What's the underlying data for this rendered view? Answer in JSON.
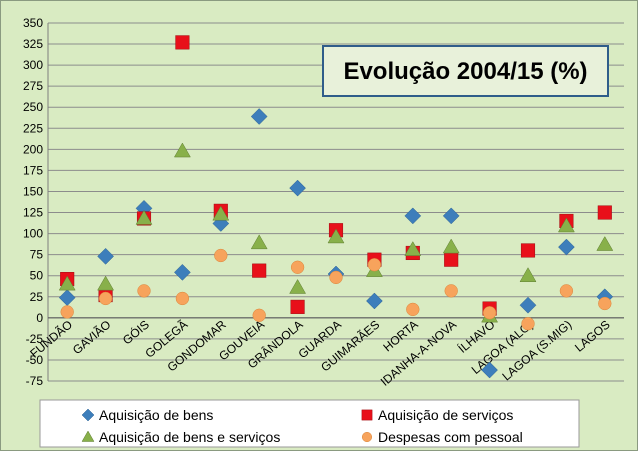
{
  "chart_data": {
    "type": "scatter",
    "title": "Evolução 2004/15 (%)",
    "categories": [
      "FUNDÃO",
      "GAVIÃO",
      "GÓIS",
      "GOLEGÃ",
      "GONDOMAR",
      "GOUVEIA",
      "GRÂNDOLA",
      "GUARDA",
      "GUIMARÃES",
      "HORTA",
      "IDANHA-A-NOVA",
      "ÍLHAVO",
      "LAGOA (ALG)",
      "LAGOA (S.MIG)",
      "LAGOS"
    ],
    "ylim": [
      -75,
      350
    ],
    "yticks": [
      -75,
      -50,
      -25,
      0,
      25,
      50,
      75,
      100,
      125,
      150,
      175,
      200,
      225,
      250,
      275,
      300,
      325,
      350
    ],
    "grid": true,
    "legend_position": "bottom",
    "background": "#d9ebc2",
    "title_box_color": "#e8f1da",
    "series": [
      {
        "name": "Aquisição de bens",
        "marker": "diamond",
        "color": "#3d7ebb",
        "values": [
          24,
          73,
          130,
          54,
          112,
          239,
          154,
          52,
          20,
          121,
          121,
          -62,
          15,
          84,
          25
        ]
      },
      {
        "name": "Aquisição de serviços",
        "marker": "square",
        "color": "#e8101a",
        "values": [
          46,
          27,
          118,
          327,
          127,
          56,
          13,
          104,
          69,
          77,
          69,
          11,
          80,
          115,
          125
        ]
      },
      {
        "name": "Aquisição de bens e serviços",
        "marker": "triangle",
        "color": "#88b04a",
        "values": [
          40,
          40,
          118,
          198,
          123,
          89,
          36,
          96,
          56,
          81,
          84,
          2,
          50,
          109,
          87
        ]
      },
      {
        "name": "Despesas com pessoal",
        "marker": "circle",
        "color": "#f7a35c",
        "values": [
          7,
          23,
          32,
          23,
          74,
          3,
          60,
          48,
          63,
          10,
          32,
          6,
          -7,
          32,
          17
        ]
      }
    ]
  }
}
